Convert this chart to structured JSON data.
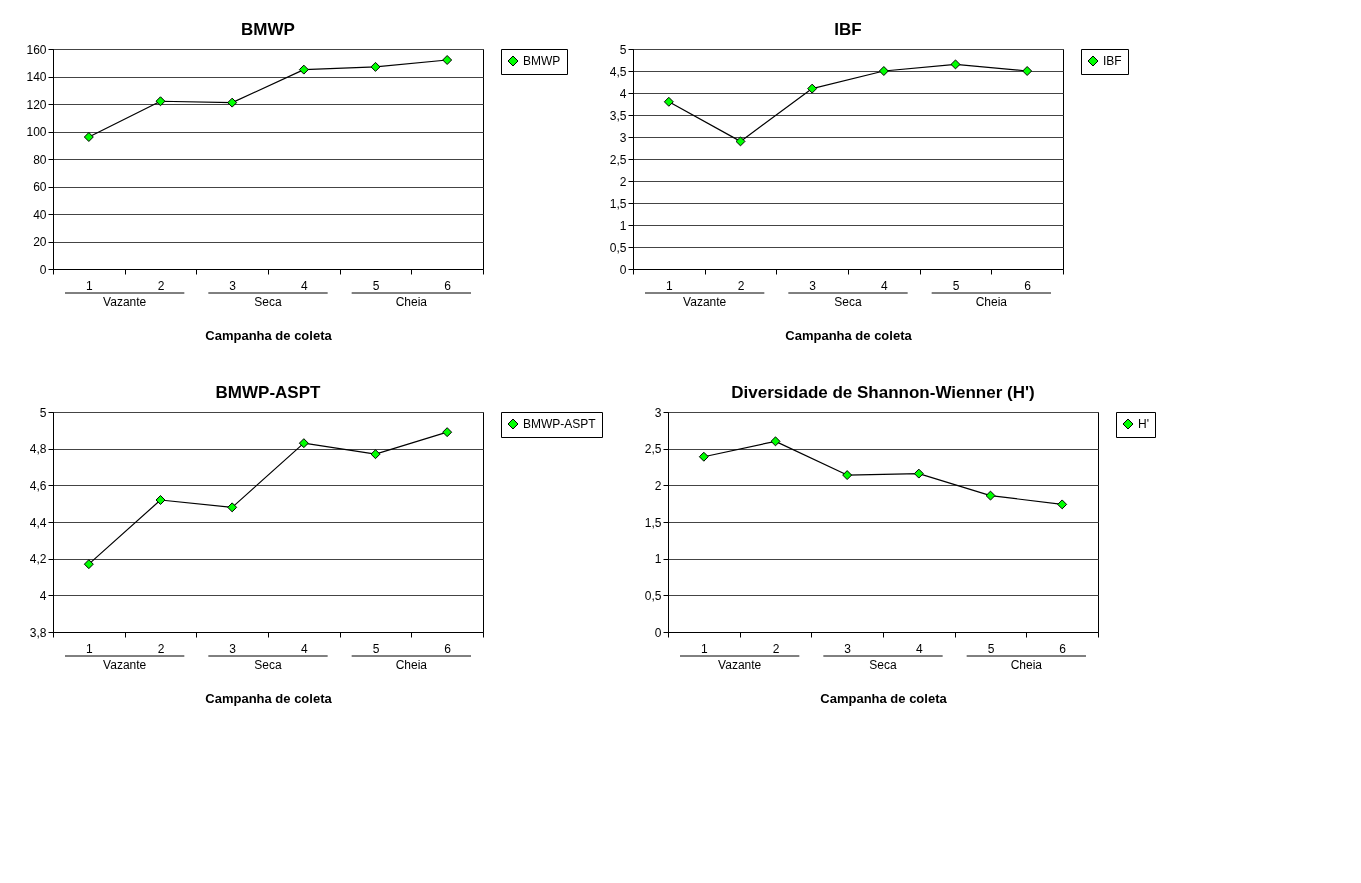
{
  "chart_data": [
    {
      "type": "line",
      "title": "BMWP",
      "xlabel": "Campanha de coleta",
      "categories": [
        "1",
        "2",
        "3",
        "4",
        "5",
        "6"
      ],
      "annotations": [
        "Vazante",
        "Seca",
        "Cheia"
      ],
      "series": [
        {
          "name": "BMWP",
          "color": "#00ff00",
          "values": [
            96,
            122,
            121,
            145,
            147,
            152
          ]
        }
      ],
      "ylim": [
        0,
        160
      ],
      "yticks": [
        0,
        20,
        40,
        60,
        80,
        100,
        120,
        140,
        160
      ],
      "grid": "y",
      "legend": "right",
      "marker": "diamond",
      "line_style": "solid"
    },
    {
      "type": "line",
      "title": "IBF",
      "xlabel": "Campanha de coleta",
      "categories": [
        "1",
        "2",
        "3",
        "4",
        "5",
        "6"
      ],
      "annotations": [
        "Vazante",
        "Seca",
        "Cheia"
      ],
      "series": [
        {
          "name": "IBF",
          "color": "#00ff00",
          "values": [
            3.8,
            2.9,
            4.1,
            4.5,
            4.65,
            4.5
          ]
        }
      ],
      "ylim": [
        0,
        5
      ],
      "yticks": [
        0,
        {
          "value": 0.5,
          "label": "0,5"
        },
        1,
        {
          "value": 1.5,
          "label": "1,5"
        },
        2,
        {
          "value": 2.5,
          "label": "2,5"
        },
        3,
        {
          "value": 3.5,
          "label": "3,5"
        },
        4,
        {
          "value": 4.5,
          "label": "4,5"
        },
        5
      ],
      "grid": "y",
      "legend": "right",
      "marker": "diamond",
      "line_style": "solid"
    },
    {
      "type": "line",
      "title": "BMWP-ASPT",
      "xlabel": "Campanha de coleta",
      "categories": [
        "1",
        "2",
        "3",
        "4",
        "5",
        "6"
      ],
      "annotations": [
        "Vazante",
        "Seca",
        "Cheia"
      ],
      "series": [
        {
          "name": "BMWP-ASPT",
          "color": "#00ff00",
          "values": [
            4.17,
            4.52,
            4.48,
            4.83,
            4.77,
            4.89
          ]
        }
      ],
      "ylim": [
        3.8,
        5
      ],
      "yticks": [
        {
          "value": 3.8,
          "label": "3,8"
        },
        4,
        {
          "value": 4.2,
          "label": "4,2"
        },
        {
          "value": 4.4,
          "label": "4,4"
        },
        {
          "value": 4.6,
          "label": "4,6"
        },
        {
          "value": 4.8,
          "label": "4,8"
        },
        5
      ],
      "grid": "y",
      "legend": "right",
      "marker": "diamond",
      "line_style": "solid"
    },
    {
      "type": "line",
      "title": "Diversidade de Shannon-Wienner (H')",
      "xlabel": "Campanha de coleta",
      "categories": [
        "1",
        "2",
        "3",
        "4",
        "5",
        "6"
      ],
      "annotations": [
        "Vazante",
        "Seca",
        "Cheia"
      ],
      "series": [
        {
          "name": "H'",
          "color": "#00ff00",
          "values": [
            2.39,
            2.6,
            2.14,
            2.16,
            1.86,
            1.74
          ]
        }
      ],
      "ylim": [
        0,
        3
      ],
      "yticks": [
        0,
        {
          "value": 0.5,
          "label": "0,5"
        },
        1,
        {
          "value": 1.5,
          "label": "1,5"
        },
        2,
        {
          "value": 2.5,
          "label": "2,5"
        },
        3
      ],
      "grid": "y",
      "legend": "right",
      "marker": "diamond",
      "line_style": "solid"
    }
  ]
}
